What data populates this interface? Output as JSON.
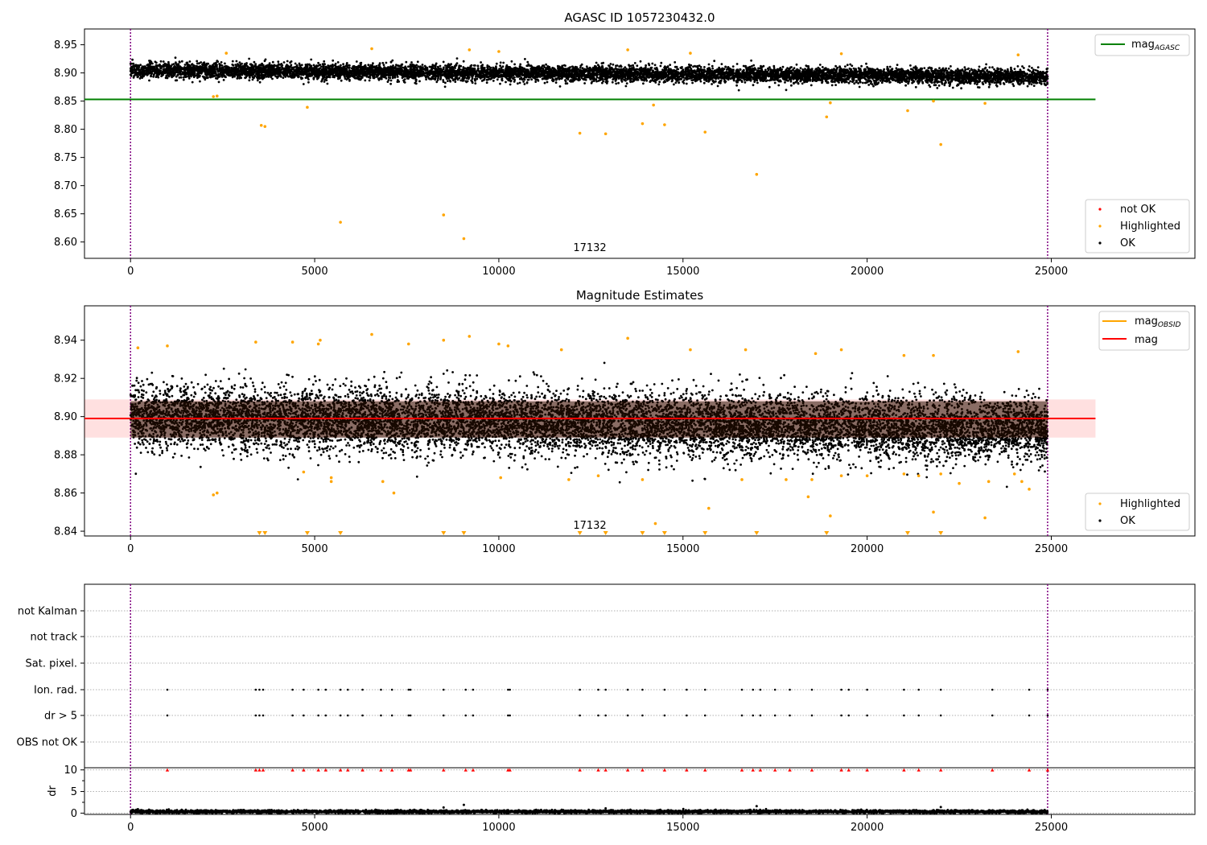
{
  "figure": {
    "title": "AGASC ID 1057230432.0"
  },
  "chart_data": [
    {
      "type": "scatter",
      "title": "AGASC ID 1057230432.0",
      "xlabel": "",
      "ylabel": "",
      "xlim": [
        -1250,
        28900
      ],
      "ylim": [
        8.571,
        8.978
      ],
      "x_ticks": [
        0,
        5000,
        10000,
        15000,
        20000,
        25000
      ],
      "y_ticks": [
        8.6,
        8.65,
        8.7,
        8.75,
        8.8,
        8.85,
        8.9,
        8.95
      ],
      "annotation": "17132",
      "annotation_x": 12450,
      "obs_boundaries": [
        0,
        24900
      ],
      "reference_lines": [
        {
          "name": "mag_AGASC",
          "name_main": "mag",
          "name_sub": "AGASC",
          "value": 8.853,
          "color": "#008000",
          "x_range": [
            -1250,
            26200
          ]
        }
      ],
      "band": [
        8.8,
        9.2
      ],
      "series": [
        {
          "name": "not OK",
          "color": "#ff0000",
          "points": []
        },
        {
          "name": "Highlighted",
          "color": "#ffa500",
          "points": [
            [
              2250,
              8.858
            ],
            [
              2350,
              8.859
            ],
            [
              3550,
              8.807
            ],
            [
              3650,
              8.805
            ],
            [
              4800,
              8.839
            ],
            [
              5700,
              8.635
            ],
            [
              8500,
              8.648
            ],
            [
              9050,
              8.606
            ],
            [
              12200,
              8.793
            ],
            [
              12900,
              8.792
            ],
            [
              13900,
              8.81
            ],
            [
              14200,
              8.843
            ],
            [
              14500,
              8.808
            ],
            [
              15600,
              8.795
            ],
            [
              17000,
              8.72
            ],
            [
              18900,
              8.822
            ],
            [
              19000,
              8.847
            ],
            [
              21100,
              8.833
            ],
            [
              21800,
              8.85
            ],
            [
              22000,
              8.773
            ],
            [
              23200,
              8.846
            ],
            [
              6550,
              8.943
            ],
            [
              9200,
              8.941
            ],
            [
              13500,
              8.941
            ],
            [
              2600,
              8.935
            ],
            [
              10000,
              8.938
            ],
            [
              15200,
              8.935
            ],
            [
              19300,
              8.934
            ],
            [
              24100,
              8.932
            ]
          ]
        },
        {
          "name": "OK",
          "color": "#000000",
          "band_center": [
            8.905,
            8.893
          ],
          "band_half_width": 0.012,
          "x_range": [
            0,
            24900
          ]
        }
      ],
      "legends": [
        {
          "position": "top-right",
          "entries": [
            {
              "name": "mag_AGASC",
              "name_main": "mag",
              "name_sub": "AGASC",
              "color": "#008000",
              "kind": "line"
            }
          ]
        },
        {
          "position": "bottom-right",
          "entries": [
            {
              "name": "not OK",
              "color": "#ff0000",
              "kind": "marker"
            },
            {
              "name": "Highlighted",
              "color": "#ffa500",
              "kind": "marker"
            },
            {
              "name": "OK",
              "color": "#000000",
              "kind": "marker"
            }
          ]
        }
      ]
    },
    {
      "type": "scatter",
      "title": "Magnitude Estimates",
      "xlabel": "",
      "ylabel": "",
      "xlim": [
        -1250,
        28900
      ],
      "ylim": [
        8.8375,
        8.958
      ],
      "x_ticks": [
        0,
        5000,
        10000,
        15000,
        20000,
        25000
      ],
      "y_ticks": [
        8.84,
        8.86,
        8.88,
        8.9,
        8.92,
        8.94
      ],
      "annotation": "17132",
      "annotation_x": 12450,
      "obs_boundaries": [
        0,
        24900
      ],
      "reference_lines": [
        {
          "name": "mag",
          "value": 8.899,
          "color": "#ff0000",
          "x_range": [
            -1250,
            26200
          ]
        }
      ],
      "band": [
        8.889,
        8.909
      ],
      "band_color": "#ff0000",
      "series": [
        {
          "name": "Highlighted",
          "color": "#ffa500",
          "points": [
            [
              2250,
              8.859
            ],
            [
              2350,
              8.86
            ],
            [
              4700,
              8.871
            ],
            [
              5450,
              8.866
            ],
            [
              5450,
              8.868
            ],
            [
              6850,
              8.866
            ],
            [
              7150,
              8.86
            ],
            [
              10050,
              8.868
            ],
            [
              11900,
              8.867
            ],
            [
              12700,
              8.869
            ],
            [
              13900,
              8.867
            ],
            [
              14250,
              8.844
            ],
            [
              15700,
              8.852
            ],
            [
              16600,
              8.867
            ],
            [
              17800,
              8.867
            ],
            [
              18400,
              8.858
            ],
            [
              18500,
              8.867
            ],
            [
              19000,
              8.848
            ],
            [
              19300,
              8.869
            ],
            [
              20000,
              8.869
            ],
            [
              21000,
              8.87
            ],
            [
              21400,
              8.869
            ],
            [
              21800,
              8.85
            ],
            [
              22000,
              8.87
            ],
            [
              22500,
              8.865
            ],
            [
              23200,
              8.847
            ],
            [
              23300,
              8.866
            ],
            [
              24000,
              8.87
            ],
            [
              24200,
              8.866
            ],
            [
              24400,
              8.862
            ],
            [
              6550,
              8.943
            ],
            [
              9200,
              8.942
            ],
            [
              13500,
              8.941
            ],
            [
              5150,
              8.94
            ],
            [
              5100,
              8.938
            ],
            [
              10000,
              8.938
            ],
            [
              10250,
              8.937
            ],
            [
              200,
              8.936
            ],
            [
              1000,
              8.937
            ],
            [
              3400,
              8.939
            ],
            [
              4400,
              8.939
            ],
            [
              7550,
              8.938
            ],
            [
              8500,
              8.94
            ],
            [
              11700,
              8.935
            ],
            [
              15200,
              8.935
            ],
            [
              16700,
              8.935
            ],
            [
              18600,
              8.933
            ],
            [
              19300,
              8.935
            ],
            [
              21000,
              8.932
            ],
            [
              21800,
              8.932
            ],
            [
              24100,
              8.934
            ]
          ]
        },
        {
          "name": "Highlighted (below axis)",
          "color": "#ffa500",
          "marker": "triangle-down",
          "points": [
            [
              3500,
              8.8375
            ],
            [
              3650,
              8.8375
            ],
            [
              4800,
              8.8375
            ],
            [
              5700,
              8.8375
            ],
            [
              8500,
              8.8375
            ],
            [
              9050,
              8.8375
            ],
            [
              12200,
              8.8375
            ],
            [
              12900,
              8.8375
            ],
            [
              13900,
              8.8375
            ],
            [
              14500,
              8.8375
            ],
            [
              15600,
              8.8375
            ],
            [
              17000,
              8.8375
            ],
            [
              18900,
              8.8375
            ],
            [
              21100,
              8.8375
            ],
            [
              22000,
              8.8375
            ]
          ]
        },
        {
          "name": "OK",
          "color": "#000000",
          "band_center": [
            8.9,
            8.893
          ],
          "band_half_width": 0.015,
          "x_range": [
            0,
            24900
          ]
        }
      ],
      "legends": [
        {
          "position": "top-right",
          "entries": [
            {
              "name": "mag_OBSID",
              "name_main": "mag",
              "name_sub": "OBSID",
              "color": "#ffa500",
              "kind": "line"
            },
            {
              "name": "mag",
              "color": "#ff0000",
              "kind": "line"
            }
          ]
        },
        {
          "position": "bottom-right",
          "entries": [
            {
              "name": "Highlighted",
              "color": "#ffa500",
              "kind": "marker"
            },
            {
              "name": "OK",
              "color": "#000000",
              "kind": "marker"
            }
          ]
        }
      ]
    },
    {
      "type": "scatter",
      "title": "",
      "xlabel": "",
      "ylabel": "",
      "xlim": [
        -1250,
        28900
      ],
      "x_ticks": [
        0,
        5000,
        10000,
        15000,
        20000,
        25000
      ],
      "obs_boundaries": [
        0,
        24900
      ],
      "categories": [
        "not Kalman",
        "not track",
        "Sat. pixel.",
        "Ion. rad.",
        "dr > 5",
        "OBS not OK"
      ],
      "flag_events": {
        "Ion. rad.": [
          1000,
          3400,
          3500,
          3600,
          4400,
          4700,
          5100,
          5300,
          5700,
          5900,
          6300,
          6800,
          7100,
          7550,
          7600,
          8500,
          9100,
          9300,
          10250,
          10300,
          12200,
          12700,
          12900,
          13500,
          13900,
          14500,
          15100,
          15600,
          16600,
          16900,
          17100,
          17500,
          17900,
          18500,
          19300,
          19500,
          20000,
          21000,
          21400,
          22000,
          23400,
          24400,
          24900
        ],
        "dr > 5": [
          1000,
          3400,
          3500,
          3600,
          4400,
          4700,
          5100,
          5300,
          5700,
          5900,
          6300,
          6800,
          7100,
          7550,
          7600,
          8500,
          9100,
          9300,
          10250,
          10300,
          12200,
          12700,
          12900,
          13500,
          13900,
          14500,
          15100,
          15600,
          16600,
          16900,
          17100,
          17500,
          17900,
          18500,
          19300,
          19500,
          20000,
          21000,
          21400,
          22000,
          23400,
          24400,
          24900
        ]
      }
    },
    {
      "type": "scatter",
      "title": "",
      "xlabel": "",
      "ylabel": "dr",
      "xlim": [
        -1250,
        28900
      ],
      "ylim": [
        -0.3,
        10.5
      ],
      "x_ticks": [
        0,
        5000,
        10000,
        15000,
        20000,
        25000
      ],
      "y_ticks": [
        0,
        5,
        10
      ],
      "obs_boundaries": [
        0,
        24900
      ],
      "series": [
        {
          "name": "dr (clipped at 10)",
          "color": "#ff0000",
          "marker": "triangle-up",
          "points": [
            [
              1000,
              10
            ],
            [
              3400,
              10
            ],
            [
              3500,
              10
            ],
            [
              3600,
              10
            ],
            [
              4400,
              10
            ],
            [
              4700,
              10
            ],
            [
              5100,
              10
            ],
            [
              5300,
              10
            ],
            [
              5700,
              10
            ],
            [
              5900,
              10
            ],
            [
              6300,
              10
            ],
            [
              6800,
              10
            ],
            [
              7100,
              10
            ],
            [
              7550,
              10
            ],
            [
              7600,
              10
            ],
            [
              8500,
              10
            ],
            [
              9100,
              10
            ],
            [
              9300,
              10
            ],
            [
              10250,
              10
            ],
            [
              10300,
              10
            ],
            [
              12200,
              10
            ],
            [
              12700,
              10
            ],
            [
              12900,
              10
            ],
            [
              13500,
              10
            ],
            [
              13900,
              10
            ],
            [
              14500,
              10
            ],
            [
              15100,
              10
            ],
            [
              15600,
              10
            ],
            [
              16600,
              10
            ],
            [
              16900,
              10
            ],
            [
              17100,
              10
            ],
            [
              17500,
              10
            ],
            [
              17900,
              10
            ],
            [
              18500,
              10
            ],
            [
              19300,
              10
            ],
            [
              19500,
              10
            ],
            [
              20000,
              10
            ],
            [
              21000,
              10
            ],
            [
              21400,
              10
            ],
            [
              22000,
              10
            ],
            [
              23400,
              10
            ],
            [
              24400,
              10
            ],
            [
              24900,
              10
            ]
          ]
        },
        {
          "name": "dr",
          "color": "#000000",
          "band_center": [
            0.35,
            0.35
          ],
          "band_half_width": 0.3,
          "x_range": [
            0,
            24900
          ],
          "points": [
            [
              8500,
              1.3
            ],
            [
              9050,
              1.9
            ],
            [
              12900,
              1.1
            ],
            [
              17000,
              1.6
            ],
            [
              22000,
              1.4
            ],
            [
              200,
              0.9
            ]
          ]
        }
      ]
    }
  ]
}
